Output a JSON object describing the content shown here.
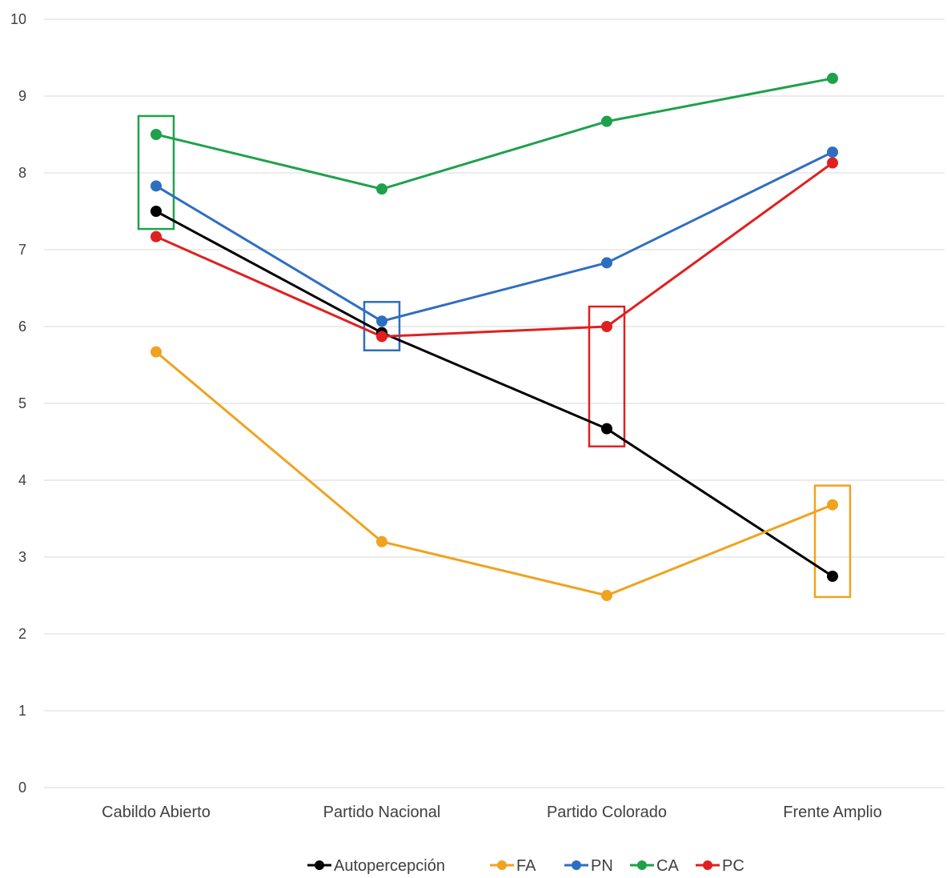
{
  "chart_data": {
    "type": "line",
    "categories": [
      "Cabildo Abierto",
      "Partido Nacional",
      "Partido Colorado",
      "Frente Amplio"
    ],
    "ylim": [
      0,
      10
    ],
    "yticks": [
      "0",
      "1",
      "2",
      "3",
      "4",
      "5",
      "6",
      "7",
      "8",
      "9",
      "10"
    ],
    "grid": true,
    "legend_position": "bottom",
    "series": [
      {
        "name": "Autopercepción",
        "color": "#000000",
        "values": [
          7.5,
          5.92,
          4.67,
          2.75
        ]
      },
      {
        "name": "FA",
        "color": "#F0A31F",
        "values": [
          5.67,
          3.2,
          2.5,
          3.68
        ]
      },
      {
        "name": "PN",
        "color": "#2E6EC0",
        "values": [
          7.83,
          6.07,
          6.83,
          8.27
        ]
      },
      {
        "name": "CA",
        "color": "#1FA14B",
        "values": [
          8.5,
          7.79,
          8.67,
          9.23
        ]
      },
      {
        "name": "PC",
        "color": "#E02020",
        "values": [
          7.17,
          5.87,
          6.0,
          8.13
        ]
      }
    ],
    "highlights": [
      {
        "category_index": 0,
        "y_range": [
          7.27,
          8.74
        ],
        "color": "#1FA14B"
      },
      {
        "category_index": 1,
        "y_range": [
          5.69,
          6.32
        ],
        "color": "#2E6EC0"
      },
      {
        "category_index": 2,
        "y_range": [
          4.44,
          6.26
        ],
        "color": "#E02020"
      },
      {
        "category_index": 3,
        "y_range": [
          2.48,
          3.93
        ],
        "color": "#F0A31F"
      }
    ]
  }
}
